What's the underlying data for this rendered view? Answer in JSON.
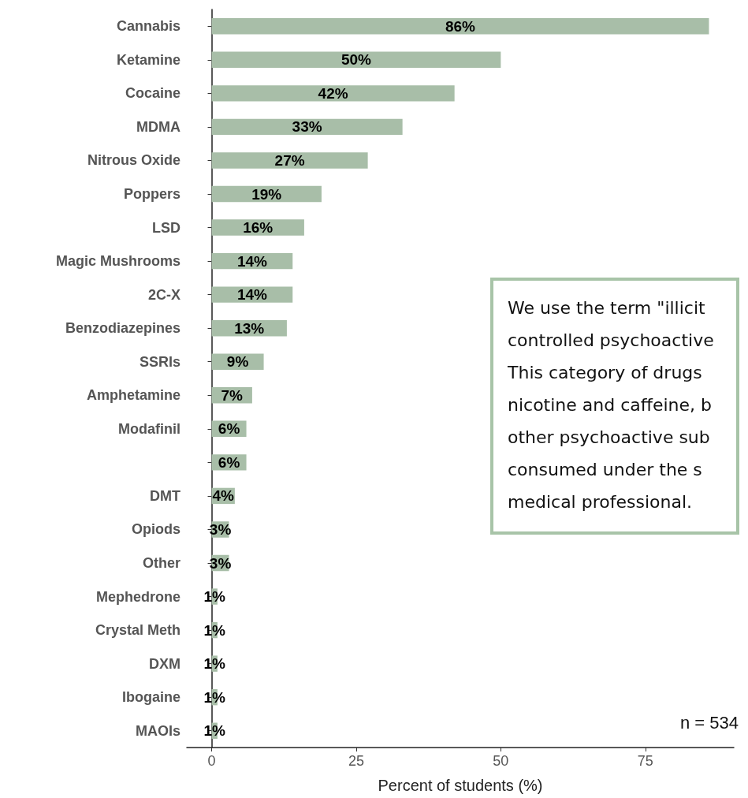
{
  "chart_data": {
    "type": "bar",
    "orientation": "horizontal",
    "xlabel": "Percent of students (%)",
    "categories": [
      "Cannabis",
      "Ketamine",
      "Cocaine",
      "MDMA",
      "Nitrous Oxide",
      "Poppers",
      "LSD",
      "Magic Mushrooms",
      "2C-X",
      "Benzodiazepines",
      "SSRIs",
      "Amphetamine",
      "Modafinil",
      null,
      "DMT",
      "Opiods",
      "Other",
      "Mephedrone",
      "Crystal Meth",
      "DXM",
      "Ibogaine",
      "MAOIs"
    ],
    "values": [
      86,
      50,
      42,
      33,
      27,
      19,
      16,
      14,
      14,
      13,
      9,
      7,
      6,
      6,
      4,
      3,
      3,
      1,
      1,
      1,
      1,
      1
    ],
    "color": "#a8bea8",
    "value_labels": [
      "86%",
      "50%",
      "42%",
      "33%",
      "27%",
      "19%",
      "16%",
      "14%",
      "14%",
      "13%",
      "9%",
      "7%",
      "6%",
      "6%",
      "4%",
      "3%",
      "3%",
      "1%",
      "1%",
      "1%",
      "1%",
      "1%"
    ],
    "xlim": [
      -4.3,
      90.3
    ],
    "xticks": [
      0,
      25,
      50,
      75
    ],
    "grid": false,
    "annotations": [
      "We use the term \"illicit\ncontrolled psychoactive\nThis category of drugs\nnicotine and caffeine, b\nother psychoactive sub\nconsumed under the s\nmedical professional.",
      "n = 534"
    ]
  }
}
